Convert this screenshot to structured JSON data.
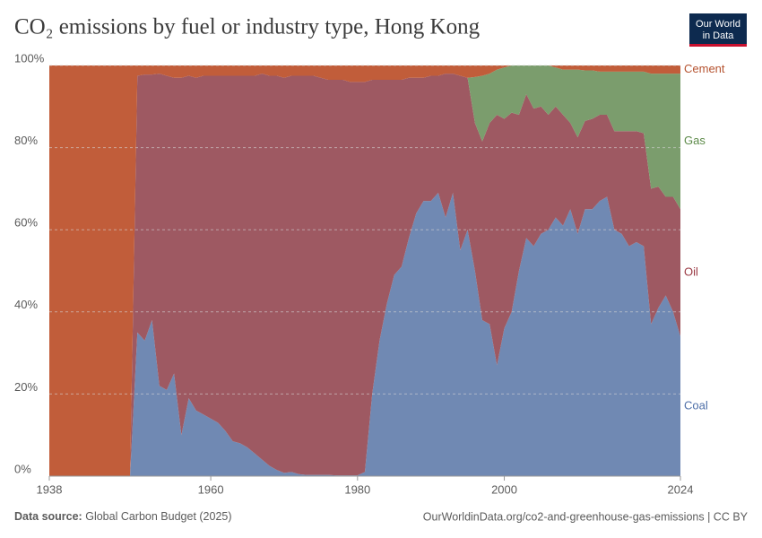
{
  "chart_data": {
    "type": "stacked_area",
    "title": "CO₂ emissions by fuel or industry type, Hong Kong",
    "logo": [
      "Our World",
      "in Data"
    ],
    "source_label": "Data source:",
    "source": "Global Carbon Budget (2025)",
    "credit": "OurWorldinData.org/co2-and-greenhouse-gas-emissions | CC BY",
    "x": [
      1938,
      1939,
      1940,
      1941,
      1942,
      1943,
      1944,
      1945,
      1946,
      1947,
      1948,
      1949,
      1950,
      1951,
      1952,
      1953,
      1954,
      1955,
      1956,
      1957,
      1958,
      1959,
      1960,
      1961,
      1962,
      1963,
      1964,
      1965,
      1966,
      1967,
      1968,
      1969,
      1970,
      1971,
      1972,
      1973,
      1974,
      1975,
      1976,
      1977,
      1978,
      1979,
      1980,
      1981,
      1982,
      1983,
      1984,
      1985,
      1986,
      1987,
      1988,
      1989,
      1990,
      1991,
      1992,
      1993,
      1994,
      1995,
      1996,
      1997,
      1998,
      1999,
      2000,
      2001,
      2002,
      2003,
      2004,
      2005,
      2006,
      2007,
      2008,
      2009,
      2010,
      2011,
      2012,
      2013,
      2014,
      2015,
      2016,
      2017,
      2018,
      2019,
      2020,
      2021,
      2022,
      2023,
      2024
    ],
    "series": [
      {
        "name": "Coal",
        "color": "#7089b3",
        "label_color": "#4e6fa8",
        "values": [
          0,
          0,
          0,
          0,
          0,
          0,
          0,
          0,
          0,
          0,
          0,
          0,
          35,
          33,
          38,
          22,
          21,
          25,
          10,
          19,
          16,
          15,
          14,
          13,
          11,
          8.5,
          8,
          7,
          5.5,
          4,
          2.5,
          1.5,
          0.8,
          1,
          0.5,
          0.3,
          0.3,
          0.3,
          0.3,
          0.2,
          0.2,
          0.2,
          0.2,
          1,
          20,
          33,
          42,
          49,
          51,
          58,
          64,
          67,
          67,
          69,
          63,
          69,
          55,
          60,
          50,
          38,
          37,
          27,
          36,
          40,
          50,
          58,
          56,
          59,
          60,
          63,
          61,
          65,
          59,
          65,
          65,
          67,
          68,
          60,
          59,
          56,
          57,
          56,
          37,
          41,
          44,
          40,
          34
        ]
      },
      {
        "name": "Oil",
        "color": "#9e5962",
        "label_color": "#9b3a44",
        "values": [
          0,
          0,
          0,
          0,
          0,
          0,
          0,
          0,
          0,
          0,
          0,
          0,
          62.5,
          64.8,
          59.8,
          76,
          76.5,
          72,
          87,
          78.5,
          81,
          82.5,
          83.5,
          84.5,
          86.5,
          89,
          89.5,
          90.5,
          92,
          94,
          95,
          96,
          96.2,
          96.5,
          97,
          97.2,
          97.2,
          96.7,
          96.2,
          96.3,
          96.3,
          95.8,
          95.8,
          95,
          76.5,
          63.5,
          54.5,
          47.5,
          45.5,
          39,
          33,
          30,
          30.5,
          28.5,
          35,
          29,
          42.5,
          37,
          36,
          43.5,
          49,
          61,
          51,
          48.5,
          38,
          35,
          33.5,
          31,
          28,
          27,
          27,
          21,
          23.5,
          21.5,
          22,
          21,
          20,
          24,
          25,
          28,
          27,
          27.5,
          33,
          29.5,
          24,
          28,
          31
        ]
      },
      {
        "name": "Gas",
        "color": "#7b9d6d",
        "label_color": "#5c8a48",
        "values": [
          0,
          0,
          0,
          0,
          0,
          0,
          0,
          0,
          0,
          0,
          0,
          0,
          0,
          0,
          0,
          0,
          0,
          0,
          0,
          0,
          0,
          0,
          0,
          0,
          0,
          0,
          0,
          0,
          0,
          0,
          0,
          0,
          0,
          0,
          0,
          0,
          0,
          0,
          0,
          0,
          0,
          0,
          0,
          0,
          0,
          0,
          0,
          0,
          0,
          0,
          0,
          0,
          0,
          0,
          0,
          0,
          0,
          0,
          11.2,
          16,
          12,
          11,
          12.5,
          11.5,
          12,
          7,
          10.5,
          10,
          12,
          9.5,
          11,
          13,
          16.5,
          12.3,
          11.8,
          10.5,
          10.5,
          14.5,
          14.5,
          14.5,
          14.5,
          15,
          28,
          27.5,
          30,
          30,
          33
        ]
      },
      {
        "name": "Cement",
        "color": "#c15d3a",
        "label_color": "#b5522f",
        "values": [
          100,
          100,
          100,
          100,
          100,
          100,
          100,
          100,
          100,
          100,
          100,
          100,
          2.5,
          2.2,
          2.2,
          2,
          2.5,
          3,
          3,
          2.5,
          3,
          2.5,
          2.5,
          2.5,
          2.5,
          2.5,
          2.5,
          2.5,
          2.5,
          2,
          2.5,
          2.5,
          3,
          2.5,
          2.5,
          2.5,
          2.5,
          3,
          3.5,
          3.5,
          3.5,
          4,
          4,
          4,
          3.5,
          3.5,
          3.5,
          3.5,
          3.5,
          3,
          3,
          3,
          2.5,
          2.5,
          2,
          2,
          2.5,
          3,
          2.8,
          2.5,
          2,
          1,
          0.5,
          0,
          0,
          0,
          0,
          0,
          0,
          0.5,
          1,
          1,
          1,
          1.2,
          1.2,
          1.5,
          1.5,
          1.5,
          1.5,
          1.5,
          1.5,
          1.5,
          2,
          2,
          2,
          2,
          2
        ]
      }
    ],
    "xlim": [
      1938,
      2024
    ],
    "xticks": [
      1938,
      1960,
      1980,
      2000,
      2024
    ],
    "ylim": [
      0,
      100
    ],
    "yticks": [
      {
        "value": 0,
        "label": "0%"
      },
      {
        "value": 20,
        "label": "20%"
      },
      {
        "value": 40,
        "label": "40%"
      },
      {
        "value": 60,
        "label": "60%"
      },
      {
        "value": 80,
        "label": "80%"
      },
      {
        "value": 100,
        "label": "100%"
      }
    ],
    "grid": true
  }
}
